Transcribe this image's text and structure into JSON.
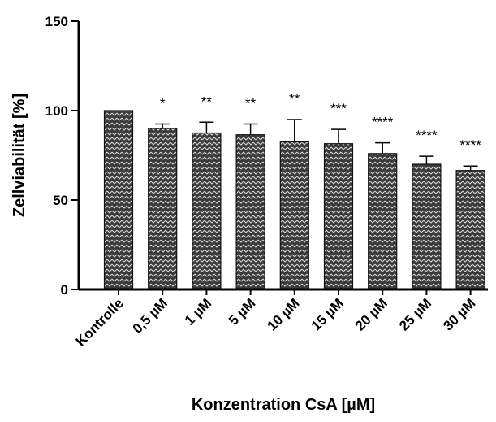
{
  "chart_data": {
    "type": "bar",
    "title": "",
    "xlabel": "Konzentration CsA [µM]",
    "ylabel": "Zellviabilität [%]",
    "ylim": [
      0,
      150
    ],
    "yticks": [
      0,
      50,
      100,
      150
    ],
    "categories": [
      "Kontrolle",
      "0,5 µM",
      "1 µM",
      "5 µM",
      "10 µM",
      "15 µM",
      "20 µM",
      "25 µM",
      "30 µM"
    ],
    "values": [
      100,
      90,
      87.5,
      86.5,
      82.5,
      81.5,
      76,
      70,
      66.5
    ],
    "error_upper": [
      0,
      2.5,
      6,
      6,
      12.5,
      8,
      6,
      4.5,
      2.5
    ],
    "significance": [
      "",
      "*",
      "**",
      "**",
      "**",
      "***",
      "****",
      "****",
      "****"
    ],
    "bar_fill": "patterned dark grey",
    "grid": false,
    "legend": "none"
  }
}
